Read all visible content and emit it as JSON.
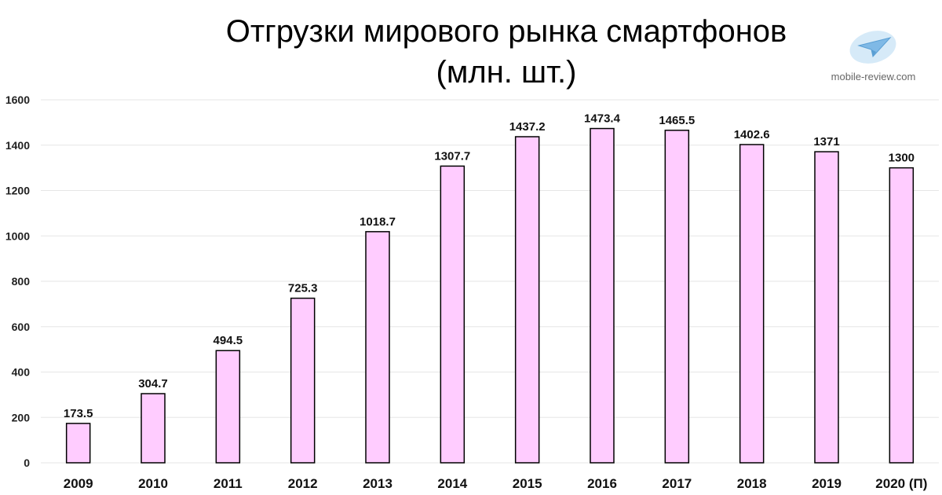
{
  "title": "Отгрузки мирового рынка смартфонов\n(млн. шт.)",
  "watermark": {
    "text": "mobile-review.com",
    "icon": "paper-plane-icon"
  },
  "colors": {
    "bar_fill": "#FFCCFF",
    "bar_stroke": "#000000",
    "grid": "#E6E6E6"
  },
  "chart_data": {
    "type": "bar",
    "title": "Отгрузки мирового рынка смартфонов (млн. шт.)",
    "xlabel": "",
    "ylabel": "",
    "categories": [
      "2009",
      "2010",
      "2011",
      "2012",
      "2013",
      "2014",
      "2015",
      "2016",
      "2017",
      "2018",
      "2019",
      "2020 (П)"
    ],
    "values": [
      173.5,
      304.7,
      494.5,
      725.3,
      1018.7,
      1307.7,
      1437.2,
      1473.4,
      1465.5,
      1402.6,
      1371,
      1300
    ],
    "data_labels": [
      "173.5",
      "304.7",
      "494.5",
      "725.3",
      "1018.7",
      "1307.7",
      "1437.2",
      "1473.4",
      "1465.5",
      "1402.6",
      "1371",
      "1300"
    ],
    "ylim": [
      0,
      1600
    ],
    "yticks": [
      0,
      200,
      400,
      600,
      800,
      1000,
      1200,
      1400,
      1600
    ],
    "grid": true,
    "legend": "none"
  }
}
